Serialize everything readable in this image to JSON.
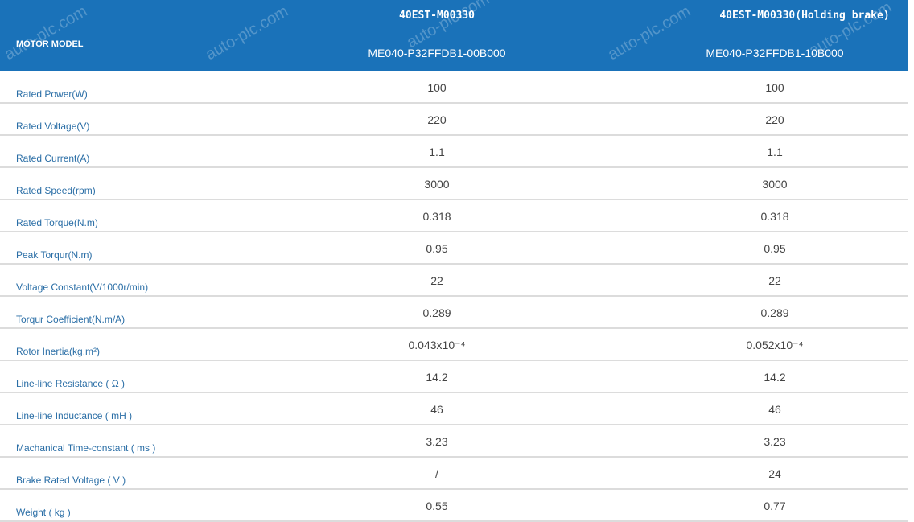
{
  "watermark": "auto-plc.com",
  "header": {
    "row_label": "MOTOR MODEL",
    "columns": [
      {
        "series": "40EST-M00330",
        "model": "ME040-P32FFDB1-00B000"
      },
      {
        "series": "40EST-M00330(Holding brake)",
        "model": "ME040-P32FFDB1-10B000"
      }
    ]
  },
  "rows": [
    {
      "label": "Rated Power(W)",
      "v1": "100",
      "v2": "100"
    },
    {
      "label": "Rated Voltage(V)",
      "v1": "220",
      "v2": "220"
    },
    {
      "label": "Rated Current(A)",
      "v1": "1.1",
      "v2": "1.1"
    },
    {
      "label": "Rated Speed(rpm)",
      "v1": "3000",
      "v2": "3000"
    },
    {
      "label": "Rated Torque(N.m)",
      "v1": "0.318",
      "v2": "0.318"
    },
    {
      "label": "Peak Torqur(N.m)",
      "v1": "0.95",
      "v2": "0.95"
    },
    {
      "label": "Voltage Constant(V/1000r/min)",
      "v1": "22",
      "v2": "22"
    },
    {
      "label": "Torqur Coefficient(N.m/A)",
      "v1": "0.289",
      "v2": "0.289"
    },
    {
      "label": "Rotor Inertia(kg.m²)",
      "v1": "0.043x10⁻⁴",
      "v2": "0.052x10⁻⁴"
    },
    {
      "label": "Line-line Resistance ( Ω )",
      "v1": "14.2",
      "v2": "14.2"
    },
    {
      "label": "Line-line Inductance ( mH )",
      "v1": "46",
      "v2": "46"
    },
    {
      "label": "Machanical Time-constant ( ms )",
      "v1": "3.23",
      "v2": "3.23"
    },
    {
      "label": "Brake Rated Voltage ( V )",
      "v1": "/",
      "v2": "24"
    },
    {
      "label": "Weight ( kg )",
      "v1": "0.55",
      "v2": "0.77"
    }
  ]
}
